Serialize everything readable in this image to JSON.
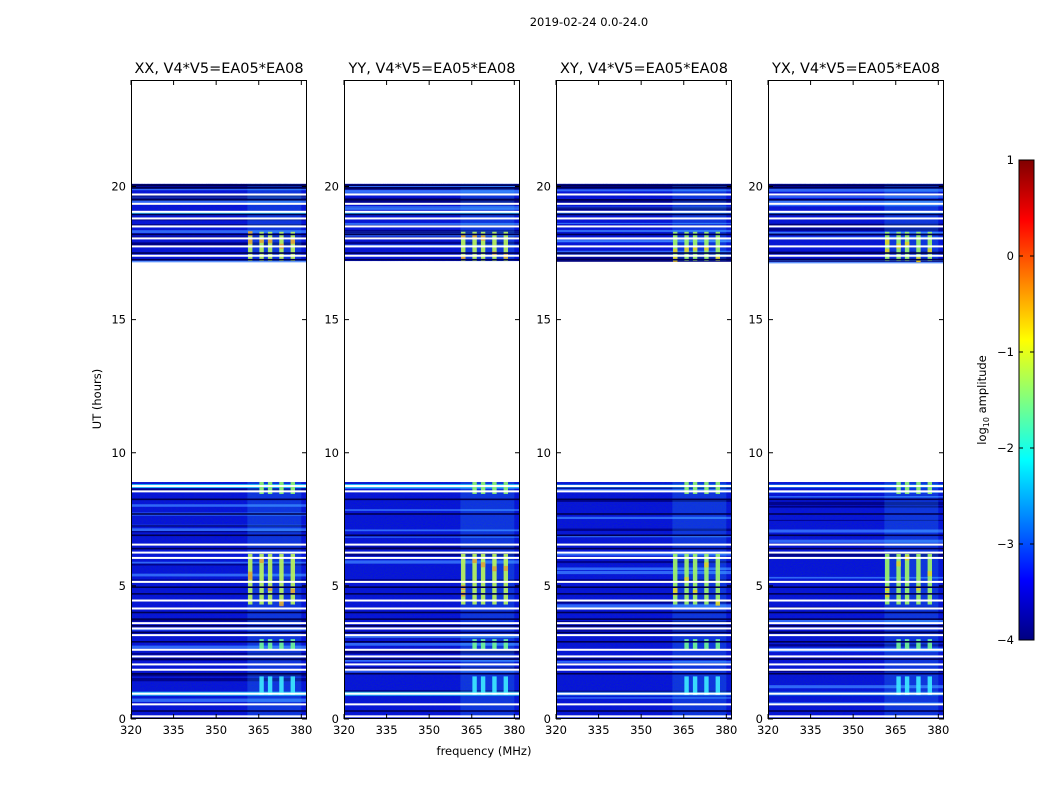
{
  "suptitle": "2019-02-24 0.0-24.0",
  "chart_data": {
    "type": "heatmap",
    "xlabel": "frequency (MHz)",
    "ylabel": "UT (hours)",
    "xlim": [
      320,
      382
    ],
    "ylim": [
      0,
      24
    ],
    "x_ticks": [
      {
        "value": 320,
        "label": "320"
      },
      {
        "value": 335,
        "label": "335"
      },
      {
        "value": 350,
        "label": "350"
      },
      {
        "value": 365,
        "label": "365"
      },
      {
        "value": 380,
        "label": "380"
      }
    ],
    "y_ticks": [
      {
        "value": 0,
        "label": "0"
      },
      {
        "value": 5,
        "label": "5"
      },
      {
        "value": 10,
        "label": "10"
      },
      {
        "value": 15,
        "label": "15"
      },
      {
        "value": 20,
        "label": "20"
      }
    ],
    "panels": [
      {
        "title": "XX, V4*V5=EA05*EA08",
        "pol": "XX"
      },
      {
        "title": "YY, V4*V5=EA05*EA08",
        "pol": "YY"
      },
      {
        "title": "XY, V4*V5=EA05*EA08",
        "pol": "XY"
      },
      {
        "title": "YX, V4*V5=EA05*EA08",
        "pol": "YX"
      }
    ],
    "data_time_ranges_hours": [
      [
        0.0,
        8.9
      ],
      [
        17.2,
        20.1
      ]
    ],
    "rfi_frequency_band_mhz": [
      361,
      380
    ],
    "rfi_channels_mhz": [
      362,
      366,
      369,
      373,
      377
    ],
    "flagged_rows_hours": [
      0.1,
      0.55,
      0.95,
      1.85,
      2.05,
      2.35,
      2.6,
      3.15,
      3.4,
      3.6,
      4.15,
      4.45,
      5.15,
      6.05,
      6.25,
      6.55,
      8.55,
      8.75,
      17.4,
      17.75,
      18.05,
      18.5,
      18.8,
      19.05,
      19.35,
      19.7
    ],
    "bright_bursts_hours": [
      [
        4.3,
        6.2
      ],
      [
        17.2,
        18.3
      ],
      [
        8.45,
        8.9
      ],
      [
        2.6,
        3.0
      ],
      [
        0.9,
        1.6
      ]
    ],
    "colorbar": {
      "label": "log10 amplitude",
      "label_base": "log",
      "label_sub": "10",
      "label_rest": " amplitude",
      "range": [
        -4,
        1
      ],
      "ticks": [
        {
          "value": 1,
          "label": "1"
        },
        {
          "value": 0,
          "label": "0"
        },
        {
          "value": -1,
          "label": "−1"
        },
        {
          "value": -2,
          "label": "−2"
        },
        {
          "value": -3,
          "label": "−3"
        },
        {
          "value": -4,
          "label": "−4"
        }
      ],
      "colormap": "jet",
      "colors": [
        "#000080",
        "#0000ff",
        "#0080ff",
        "#00ffff",
        "#80ff80",
        "#ffff00",
        "#ff8000",
        "#ff0000",
        "#800000"
      ]
    }
  }
}
